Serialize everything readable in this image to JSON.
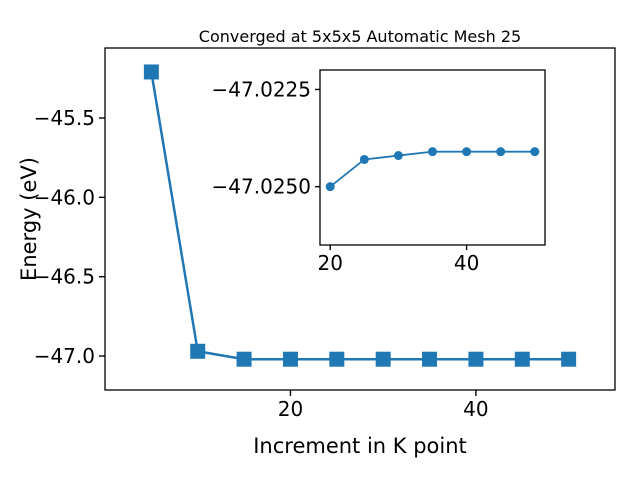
{
  "figure": {
    "background": "#ffffff"
  },
  "chart_data": {
    "type": "line",
    "title": "Converged at 5x5x5 Automatic Mesh 25",
    "xlabel": "Increment in K point",
    "ylabel": "Energy (eV)",
    "series_color": "#1f77b4",
    "legend": "none",
    "grid": false,
    "axes": [
      {
        "id": "main",
        "marker": "square",
        "x": [
          5,
          10,
          15,
          20,
          25,
          30,
          35,
          40,
          45,
          50
        ],
        "y": [
          -45.21,
          -46.97,
          -47.02,
          -47.02,
          -47.02,
          -47.02,
          -47.02,
          -47.02,
          -47.02,
          -47.02
        ],
        "xlim": [
          0,
          55
        ],
        "ylim": [
          -47.214,
          -45.059
        ],
        "xticks": [
          20,
          40
        ],
        "xtick_labels": [
          "20",
          "40"
        ],
        "yticks": [
          -45.5,
          -46.0,
          -46.5,
          -47.0
        ],
        "ytick_labels": [
          "−45.5",
          "−46.0",
          "−46.5",
          "−47.0"
        ]
      },
      {
        "id": "inset",
        "marker": "circle",
        "x": [
          20,
          25,
          30,
          35,
          40,
          45,
          50
        ],
        "y": [
          -47.025,
          -47.0243,
          -47.0242,
          -47.0241,
          -47.0241,
          -47.0241,
          -47.0241
        ],
        "xlim": [
          18.5,
          51.5
        ],
        "ylim": [
          -47.0265,
          -47.022
        ],
        "xticks": [
          20,
          40
        ],
        "xtick_labels": [
          "20",
          "40"
        ],
        "yticks": [
          -47.025,
          -47.0225
        ],
        "ytick_labels": [
          "−47.0250",
          "−47.0225"
        ]
      }
    ]
  }
}
